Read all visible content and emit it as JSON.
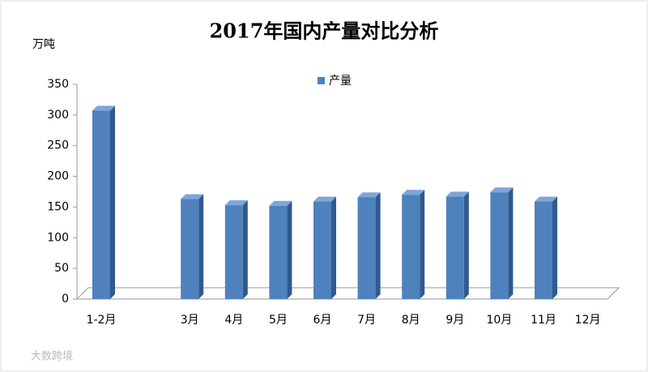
{
  "chart_data": {
    "type": "bar",
    "title": "2017年国内产量对比分析",
    "y_label": "万吨",
    "categories": [
      "1-2月",
      null,
      "3月",
      "4月",
      "5月",
      "6月",
      "7月",
      "8月",
      "9月",
      "10月",
      "11月",
      "12月"
    ],
    "series": [
      {
        "name": "产量",
        "color": "#4f81bd",
        "values": [
          307,
          null,
          163,
          153,
          152,
          159,
          166,
          170,
          167,
          174,
          159,
          null
        ]
      }
    ],
    "ylim": [
      0,
      350
    ],
    "yticks": [
      0,
      50,
      100,
      150,
      200,
      250,
      300,
      350
    ],
    "grid": false,
    "legend": "top",
    "watermark": "大数跨境"
  }
}
